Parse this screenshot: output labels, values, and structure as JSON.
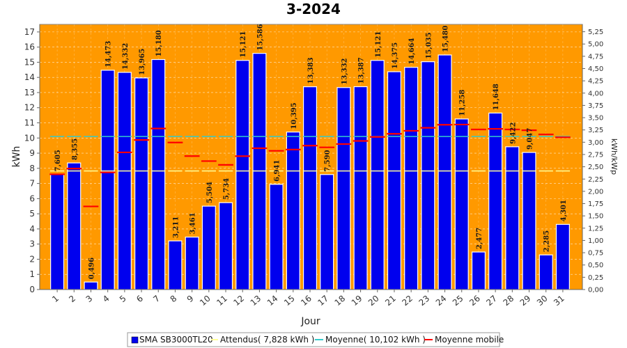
{
  "chart_data": {
    "type": "bar",
    "title": "3-2024",
    "xlabel": "Jour",
    "ylabel": "kWh",
    "y2label": "kWh/kWp",
    "ylim": [
      0,
      17.5
    ],
    "y2lim": [
      0,
      5.4
    ],
    "yticks": [
      0,
      1,
      2,
      3,
      4,
      5,
      6,
      7,
      8,
      9,
      10,
      11,
      12,
      13,
      14,
      15,
      16,
      17
    ],
    "y2ticks": [
      "0,00",
      "0,25",
      "0,50",
      "0,75",
      "1,00",
      "1,25",
      "1,50",
      "1,75",
      "2,00",
      "2,25",
      "2,50",
      "2,75",
      "3,00",
      "3,25",
      "3,50",
      "3,75",
      "4,00",
      "4,25",
      "4,50",
      "4,75",
      "5,00",
      "5,25"
    ],
    "y2tick_values": [
      0,
      0.25,
      0.5,
      0.75,
      1,
      1.25,
      1.5,
      1.75,
      2,
      2.25,
      2.5,
      2.75,
      3,
      3.25,
      3.5,
      3.75,
      4,
      4.25,
      4.5,
      4.75,
      5,
      5.25
    ],
    "kwp_factor": 3.25,
    "categories": [
      "1",
      "2",
      "3",
      "4",
      "5",
      "6",
      "7",
      "8",
      "9",
      "10",
      "11",
      "12",
      "13",
      "14",
      "15",
      "16",
      "17",
      "18",
      "19",
      "20",
      "21",
      "22",
      "23",
      "24",
      "25",
      "26",
      "27",
      "28",
      "29",
      "30",
      "31"
    ],
    "series": [
      {
        "name": "SMA SB3000TL20",
        "kind": "bar",
        "color": "#0000ee",
        "values": [
          7.605,
          8.355,
          0.496,
          14.473,
          14.332,
          13.965,
          15.18,
          3.211,
          3.461,
          5.504,
          5.734,
          15.121,
          15.586,
          6.941,
          10.395,
          13.383,
          7.59,
          13.332,
          13.387,
          15.121,
          14.375,
          14.664,
          15.035,
          15.48,
          11.258,
          2.477,
          11.648,
          9.422,
          9.047,
          2.285,
          4.301
        ],
        "labels": [
          "7,605",
          "8,355",
          "0,496",
          "14,473",
          "14,332",
          "13,965",
          "15,180",
          "3,211",
          "3,461",
          "5,504",
          "5,734",
          "15,121",
          "15,586",
          "6,941",
          "10,395",
          "13,383",
          "7,590",
          "13,332",
          "13,387",
          "15,121",
          "14,375",
          "14,664",
          "15,035",
          "15,480",
          "11,258",
          "2,477",
          "11,648",
          "9,422",
          "9,047",
          "2,285",
          "4,301"
        ]
      },
      {
        "name": "Attendus( 7,828 kWh )",
        "kind": "hline",
        "color": "#ffff99",
        "value": 7.828
      },
      {
        "name": "Moyenne( 10,102 kWh )",
        "kind": "hline",
        "color": "#33cccc",
        "value": 10.102
      },
      {
        "name": "Moyenne mobile",
        "kind": "step",
        "color": "#ff0000",
        "values": [
          7.605,
          7.98,
          5.485,
          7.732,
          9.052,
          9.871,
          10.629,
          9.702,
          8.808,
          8.478,
          8.228,
          8.802,
          9.324,
          9.154,
          9.237,
          9.496,
          9.384,
          9.603,
          9.806,
          10.071,
          10.277,
          10.476,
          10.674,
          10.874,
          10.889,
          10.566,
          10.606,
          10.564,
          10.512,
          10.238,
          10.046
        ]
      }
    ],
    "grid": true,
    "legend": "bottom",
    "plot_background": "#ff9900"
  }
}
